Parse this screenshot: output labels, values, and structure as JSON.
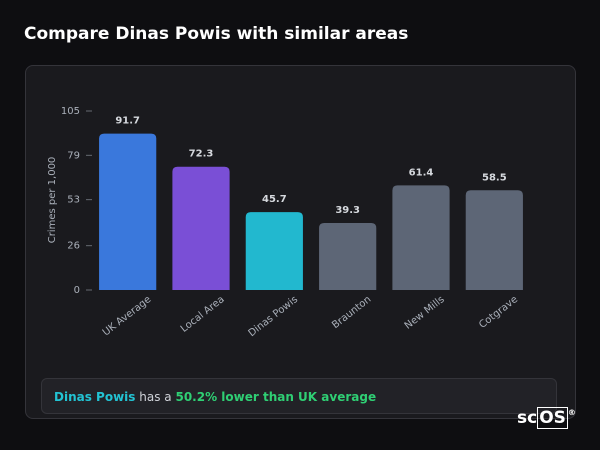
{
  "chart_data": {
    "type": "bar",
    "title": "Compare Dinas Powis with similar areas",
    "y_label": "Crimes per 1,000",
    "categories": [
      "UK Average",
      "Local Area",
      "Dinas Powis",
      "Braunton",
      "New Mills",
      "Cotgrave"
    ],
    "values": [
      91.7,
      72.3,
      45.7,
      39.3,
      61.4,
      58.5
    ],
    "colors": [
      "#3a78dc",
      "#7a4fd6",
      "#22b8cf",
      "#5d6676",
      "#5d6676",
      "#5d6676"
    ],
    "ylim": [
      0,
      105
    ],
    "yticks": [
      0,
      26,
      53,
      79,
      105
    ],
    "grid": false
  },
  "summary": {
    "area": "Dinas Powis",
    "text": "has a",
    "comparison": "50.2% lower than UK average"
  },
  "logo": {
    "prefix": "sc",
    "boxed": "OS",
    "mark": "®"
  }
}
